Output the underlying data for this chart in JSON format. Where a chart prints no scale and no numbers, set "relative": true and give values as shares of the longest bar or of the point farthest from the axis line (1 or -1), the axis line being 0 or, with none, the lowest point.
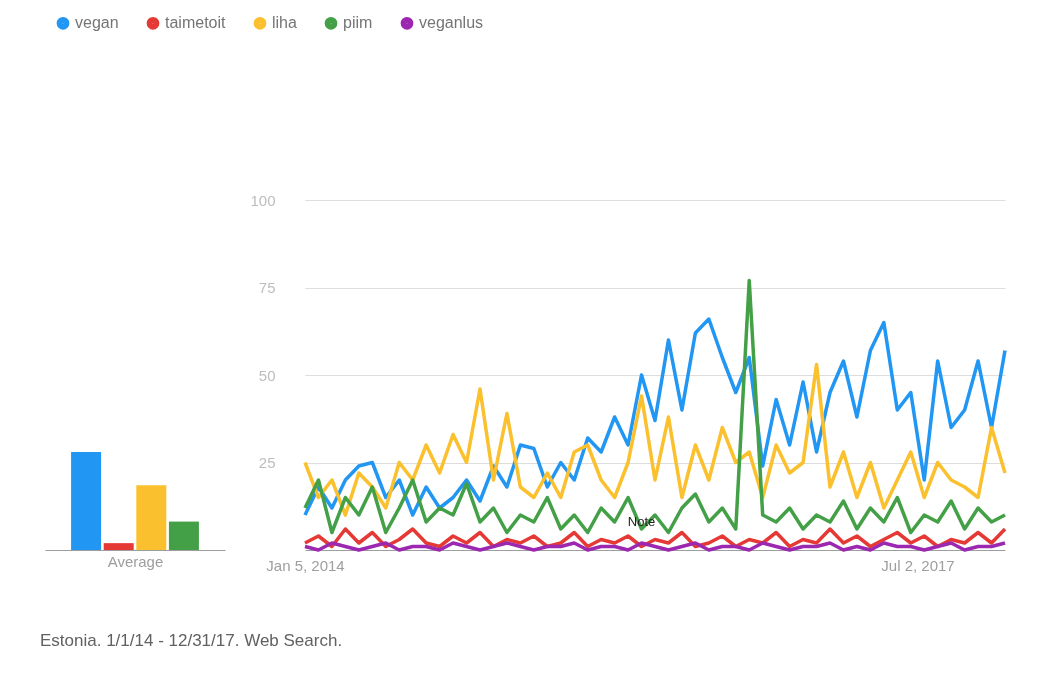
{
  "chart_data": [
    {
      "type": "bar",
      "categories": [
        null,
        null,
        null,
        null
      ],
      "values": [
        1,
        0.07,
        0.66,
        0.29
      ],
      "colors": [
        "#2196f3",
        "#e53935",
        "#fbc02d",
        "#43a047"
      ],
      "xlabel": "Average",
      "relative": true
    },
    {
      "type": "line",
      "x": [
        "2014-01-05",
        "2014-02-02",
        "2014-03-02",
        "2014-03-30",
        "2014-04-27",
        "2014-05-25",
        "2014-06-22",
        "2014-07-20",
        "2014-08-17",
        "2014-09-14",
        "2014-10-12",
        "2014-11-09",
        "2014-12-07",
        "2015-01-04",
        "2015-02-01",
        "2015-03-01",
        "2015-03-29",
        "2015-04-26",
        "2015-05-24",
        "2015-06-21",
        "2015-07-19",
        "2015-08-16",
        "2015-09-13",
        "2015-10-11",
        "2015-11-08",
        "2015-12-06",
        "2016-01-03",
        "2016-01-31",
        "2016-02-28",
        "2016-03-27",
        "2016-04-24",
        "2016-05-22",
        "2016-06-19",
        "2016-07-17",
        "2016-08-14",
        "2016-09-11",
        "2016-10-09",
        "2016-11-06",
        "2016-12-04",
        "2017-01-01",
        "2017-01-29",
        "2017-02-26",
        "2017-03-26",
        "2017-04-23",
        "2017-05-21",
        "2017-06-18",
        "2017-07-16",
        "2017-08-13",
        "2017-09-10",
        "2017-10-08",
        "2017-11-05",
        "2017-12-03",
        "2017-12-31"
      ],
      "series": [
        {
          "name": "vegan",
          "color": "#2196f3",
          "values": [
            10,
            18,
            12,
            20,
            24,
            25,
            15,
            20,
            10,
            18,
            12,
            15,
            20,
            14,
            24,
            18,
            30,
            29,
            18,
            25,
            20,
            32,
            28,
            38,
            30,
            50,
            37,
            60,
            40,
            62,
            66,
            55,
            45,
            55,
            24,
            43,
            30,
            48,
            28,
            45,
            54,
            38,
            57,
            65,
            40,
            45,
            20,
            54,
            35,
            40,
            54,
            35,
            57
          ]
        },
        {
          "name": "taimetoit",
          "color": "#e53935",
          "values": [
            2,
            4,
            1,
            6,
            2,
            5,
            1,
            3,
            6,
            2,
            1,
            4,
            2,
            5,
            1,
            3,
            2,
            4,
            1,
            2,
            5,
            1,
            3,
            2,
            4,
            1,
            3,
            2,
            5,
            1,
            2,
            4,
            1,
            3,
            2,
            5,
            1,
            3,
            2,
            6,
            2,
            4,
            1,
            3,
            5,
            2,
            4,
            1,
            3,
            2,
            5,
            2,
            6
          ]
        },
        {
          "name": "liha",
          "color": "#fbc02d",
          "values": [
            25,
            15,
            20,
            10,
            22,
            18,
            12,
            25,
            20,
            30,
            22,
            33,
            25,
            46,
            20,
            39,
            18,
            15,
            22,
            15,
            28,
            30,
            20,
            15,
            25,
            44,
            20,
            38,
            15,
            30,
            20,
            35,
            25,
            28,
            15,
            30,
            22,
            25,
            53,
            18,
            28,
            15,
            25,
            12,
            20,
            28,
            15,
            25,
            20,
            18,
            15,
            35,
            22
          ]
        },
        {
          "name": "piim",
          "color": "#43a047",
          "values": [
            12,
            20,
            5,
            15,
            10,
            18,
            5,
            12,
            20,
            8,
            12,
            10,
            19,
            8,
            12,
            5,
            10,
            8,
            15,
            6,
            10,
            5,
            12,
            8,
            15,
            6,
            10,
            5,
            12,
            16,
            8,
            12,
            6,
            77,
            10,
            8,
            12,
            6,
            10,
            8,
            14,
            6,
            12,
            8,
            15,
            5,
            10,
            8,
            14,
            6,
            12,
            8,
            10
          ]
        },
        {
          "name": "veganlus",
          "color": "#9c27b0",
          "values": [
            1,
            0,
            2,
            1,
            0,
            1,
            2,
            0,
            1,
            1,
            0,
            2,
            1,
            0,
            1,
            2,
            1,
            0,
            1,
            1,
            2,
            0,
            1,
            1,
            0,
            2,
            1,
            0,
            1,
            2,
            0,
            1,
            1,
            0,
            2,
            1,
            0,
            1,
            1,
            2,
            0,
            1,
            0,
            2,
            1,
            1,
            0,
            1,
            2,
            0,
            1,
            1,
            2
          ]
        }
      ],
      "xlim": [
        "2014-01-05",
        "2017-12-31"
      ],
      "xticks": [
        {
          "value": "2014-01-05",
          "label": "Jan 5, 2014"
        },
        {
          "value": "2017-07-02",
          "label": "Jul 2, 2017"
        }
      ],
      "ylim": [
        0,
        100
      ],
      "yticks": [
        25,
        50,
        75,
        100
      ],
      "grid": "y",
      "legend": "top",
      "line_style": "solid",
      "annotations": [
        {
          "text": "Note",
          "x": "2015-12-06",
          "y": 6
        },
        "Estonia. 1/1/14 - 12/31/17. Web Search."
      ]
    }
  ]
}
